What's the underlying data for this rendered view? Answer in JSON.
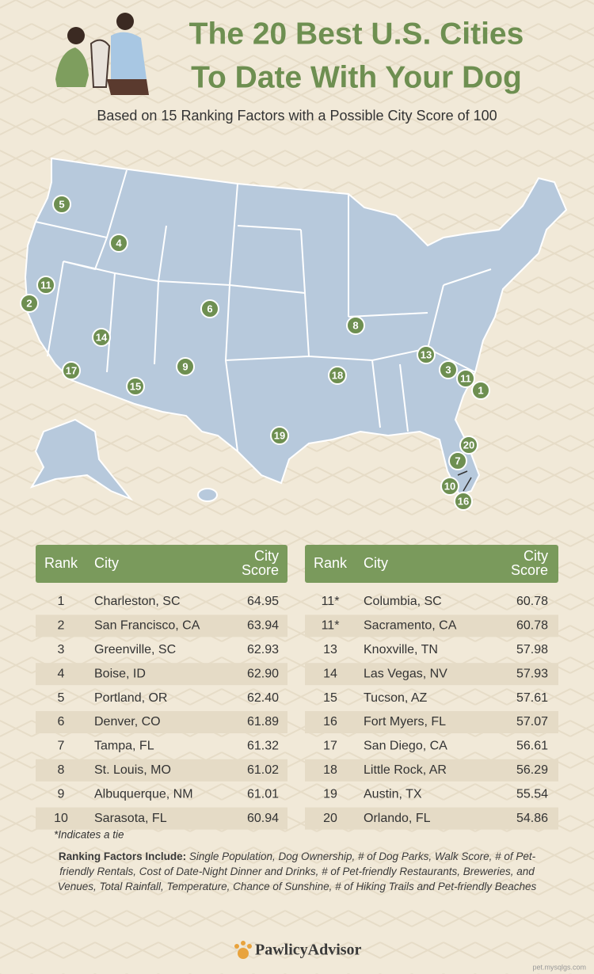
{
  "header": {
    "title_line1": "The 20 Best U.S. Cities",
    "title_line2": "To Date With Your Dog",
    "subtitle": "Based on 15 Ranking Factors with a Possible City Score of 100"
  },
  "map": {
    "markers": [
      "5",
      "4",
      "11",
      "2",
      "6",
      "14",
      "8",
      "13",
      "3",
      "11",
      "1",
      "9",
      "17",
      "18",
      "15",
      "19",
      "20",
      "7",
      "10",
      "16"
    ]
  },
  "tables": [
    {
      "header": {
        "rank": "Rank",
        "city": "City",
        "score": [
          "City",
          "Score"
        ]
      },
      "rows": [
        [
          "1",
          "Charleston, SC",
          "64.95"
        ],
        [
          "2",
          "San Francisco, CA",
          "63.94"
        ],
        [
          "3",
          "Greenville, SC",
          "62.93"
        ],
        [
          "4",
          "Boise, ID",
          "62.90"
        ],
        [
          "5",
          "Portland, OR",
          "62.40"
        ],
        [
          "6",
          "Denver, CO",
          "61.89"
        ],
        [
          "7",
          "Tampa, FL",
          "61.32"
        ],
        [
          "8",
          "St. Louis, MO",
          "61.02"
        ],
        [
          "9",
          "Albuquerque, NM",
          "61.01"
        ],
        [
          "10",
          "Sarasota, FL",
          "60.94"
        ]
      ]
    },
    {
      "header": {
        "rank": "Rank",
        "city": "City",
        "score": [
          "City",
          "Score"
        ]
      },
      "rows": [
        [
          "11*",
          "Columbia, SC",
          "60.78"
        ],
        [
          "11*",
          "Sacramento, CA",
          "60.78"
        ],
        [
          "13",
          "Knoxville, TN",
          "57.98"
        ],
        [
          "14",
          "Las Vegas, NV",
          "57.93"
        ],
        [
          "15",
          "Tucson, AZ",
          "57.61"
        ],
        [
          "16",
          "Fort Myers, FL",
          "57.07"
        ],
        [
          "17",
          "San Diego, CA",
          "56.61"
        ],
        [
          "18",
          "Little Rock, AR",
          "56.29"
        ],
        [
          "19",
          "Austin, TX",
          "55.54"
        ],
        [
          "20",
          "Orlando, FL",
          "54.86"
        ]
      ]
    }
  ],
  "footnote": "*Indicates a tie",
  "factors": {
    "label": "Ranking Factors Include:",
    "text": "Single Population, Dog Ownership, # of Dog Parks, Walk Score, # of Pet-friendly Rentals, Cost of Date-Night Dinner and Drinks, # of Pet-friendly Restaurants, Breweries, and Venues, Total Rainfall, Temperature, Chance of Sunshine, # of Hiking Trails and Pet-friendly Beaches"
  },
  "logo": "PawlicyAdvisor",
  "watermark": "pet.mysqlgs.com"
}
